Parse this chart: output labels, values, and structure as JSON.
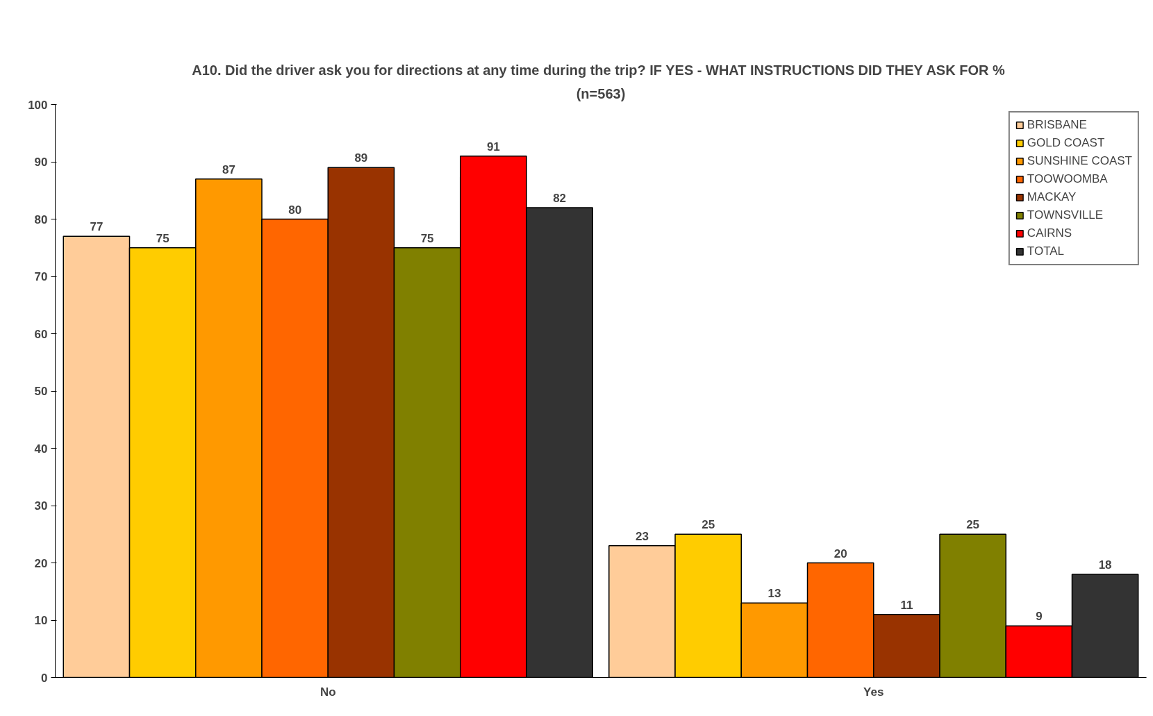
{
  "chart_data": {
    "type": "bar",
    "title": "A10. Did the driver ask you for directions at any time during the trip?  IF YES - WHAT INSTRUCTIONS DID THEY ASK FOR %",
    "subtitle": "(n=563)",
    "categories": [
      "No",
      "Yes"
    ],
    "series": [
      {
        "name": "BRISBANE",
        "color": "#ffcc99",
        "values": [
          77,
          23
        ]
      },
      {
        "name": "GOLD COAST",
        "color": "#ffcc00",
        "values": [
          75,
          25
        ]
      },
      {
        "name": "SUNSHINE COAST",
        "color": "#ff9900",
        "values": [
          87,
          13
        ]
      },
      {
        "name": "TOOWOOMBA",
        "color": "#ff6600",
        "values": [
          80,
          20
        ]
      },
      {
        "name": "MACKAY",
        "color": "#993300",
        "values": [
          89,
          11
        ]
      },
      {
        "name": "TOWNSVILLE",
        "color": "#808000",
        "values": [
          75,
          25
        ]
      },
      {
        "name": "CAIRNS",
        "color": "#ff0000",
        "values": [
          91,
          9
        ]
      },
      {
        "name": "TOTAL",
        "color": "#333333",
        "values": [
          82,
          18
        ]
      }
    ],
    "ylim": [
      0,
      100
    ],
    "yticks": [
      0,
      10,
      20,
      30,
      40,
      50,
      60,
      70,
      80,
      90,
      100
    ],
    "grid": false,
    "legend": "top right",
    "data_labels": true
  }
}
